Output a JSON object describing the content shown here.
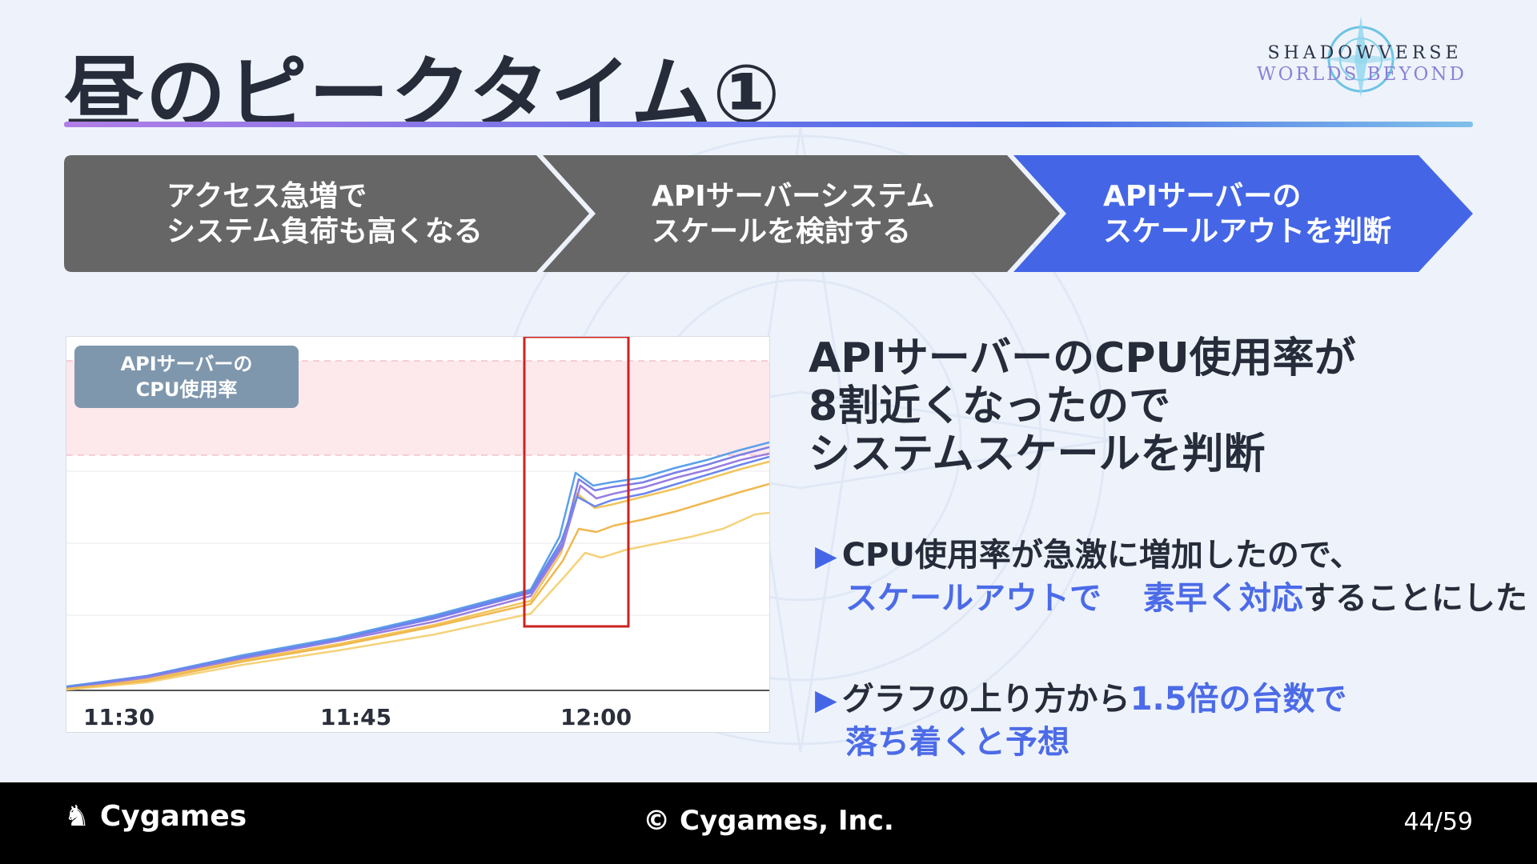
{
  "title": "昼のピークタイム①",
  "logo": {
    "line1": "SHADOWVERSE",
    "line2": "WORLDS BEYOND"
  },
  "steps": [
    {
      "line1": "アクセス急増で",
      "line2": "システム負荷も高くなる",
      "color": "#666666"
    },
    {
      "line1": "APIサーバーシステム",
      "line2": "スケールを検討する",
      "color": "#666666"
    },
    {
      "line1": "APIサーバーの",
      "line2": "スケールアウトを判断",
      "color": "#4466e6"
    }
  ],
  "chart": {
    "label_line1": "APIサーバーの",
    "label_line2": "CPU使用率",
    "x_ticks": [
      "11:30",
      "11:45",
      "12:00"
    ]
  },
  "headline": [
    "APIサーバーのCPU使用率が",
    "8割近くなったので",
    "システムスケールを判断"
  ],
  "bullets": [
    {
      "line1": "CPU使用率が急激に増加したので、",
      "line2_hl": "スケールアウトで",
      "line3_hl": "素早く対応",
      "line3_rest": "することにした"
    },
    {
      "line1_pre": "グラフの上り方から",
      "line1_hl": "1.5倍の台数で",
      "line2_hl": "落ち着くと予想"
    }
  ],
  "footer": {
    "brand": "Cygames",
    "copyright": "© Cygames, Inc.",
    "page": "44/59"
  },
  "colors": {
    "accent": "#4466e6",
    "step_gray": "#666666",
    "highlight_box": "#cc2222"
  }
}
